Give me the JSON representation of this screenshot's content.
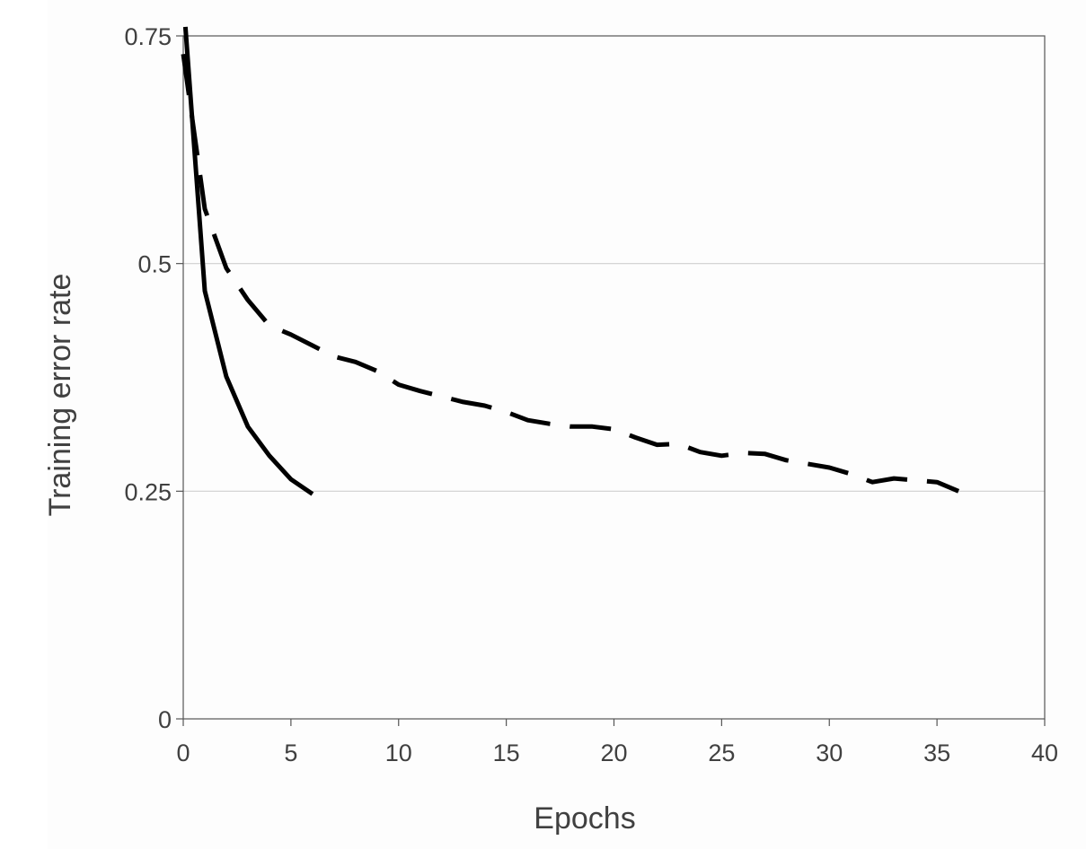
{
  "chart_data": {
    "type": "line",
    "title": "",
    "xlabel": "Epochs",
    "ylabel": "Training error rate",
    "xlim": [
      0,
      40
    ],
    "ylim": [
      0,
      0.75
    ],
    "xticks": [
      0,
      5,
      10,
      15,
      20,
      25,
      30,
      35,
      40
    ],
    "yticks": [
      0,
      0.25,
      0.5,
      0.75
    ],
    "xtick_labels": [
      "0",
      "5",
      "10",
      "15",
      "20",
      "25",
      "30",
      "35",
      "40"
    ],
    "ytick_labels": [
      "0",
      "0.25",
      "0.5",
      "0.75"
    ],
    "grid": "horizontal",
    "legend": "none",
    "series": [
      {
        "style": "solid",
        "color": "#000000",
        "x": [
          0.1,
          1,
          2,
          3,
          4,
          5,
          6
        ],
        "y": [
          0.76,
          0.47,
          0.376,
          0.321,
          0.289,
          0.263,
          0.247
        ]
      },
      {
        "style": "dashed",
        "color": "#000000",
        "x": [
          0,
          1,
          2,
          3,
          4,
          5,
          6,
          7,
          8,
          9,
          10,
          11,
          12,
          13,
          14,
          15,
          16,
          17,
          18,
          19,
          20,
          21,
          22,
          23,
          24,
          25,
          26,
          27,
          28,
          29,
          30,
          31,
          32,
          33,
          34,
          35,
          36
        ],
        "y": [
          0.73,
          0.56,
          0.495,
          0.46,
          0.432,
          0.422,
          0.41,
          0.398,
          0.392,
          0.382,
          0.367,
          0.36,
          0.354,
          0.348,
          0.344,
          0.337,
          0.328,
          0.324,
          0.321,
          0.321,
          0.318,
          0.309,
          0.301,
          0.302,
          0.293,
          0.289,
          0.292,
          0.291,
          0.284,
          0.28,
          0.276,
          0.269,
          0.26,
          0.264,
          0.262,
          0.26,
          0.25
        ]
      }
    ]
  }
}
